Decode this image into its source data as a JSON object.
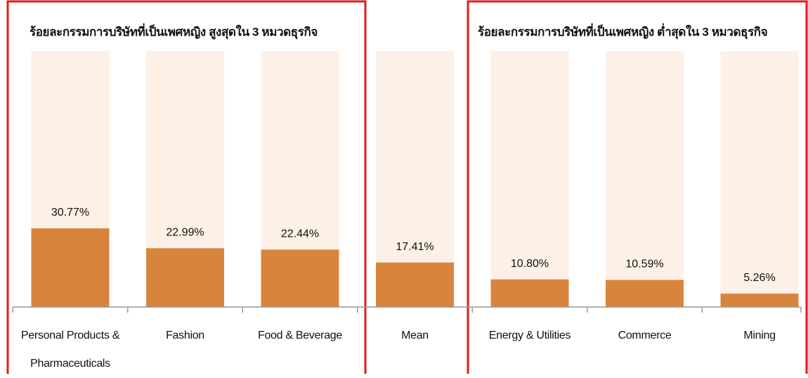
{
  "chart_data": {
    "type": "bar",
    "categories": [
      "Personal Products & Pharmaceuticals",
      "Fashion",
      "Food & Beverage",
      "Mean",
      "Energy & Utilities",
      "Commerce",
      "Mining"
    ],
    "values": [
      30.77,
      22.99,
      22.44,
      17.41,
      10.8,
      10.59,
      5.26
    ],
    "value_labels": [
      "30.77%",
      "22.99%",
      "22.44%",
      "17.41%",
      "10.80%",
      "10.59%",
      "5.26%"
    ],
    "color": "#d9843d",
    "background_color": "#fdf0e6",
    "box_color": "#e01b1b",
    "ylim": [
      0,
      100
    ],
    "groups": [
      {
        "title": "ร้อยละกรรมการบริษัทที่เป็นเพศหญิง สูงสุดใน 3 หมวดธุรกิจ"
      },
      {
        "title": "ร้อยละกรรมการบริษัทที่เป็นเพศหญิง  ต่ำสุดใน 3 หมวดธุรกิจ"
      }
    ]
  }
}
